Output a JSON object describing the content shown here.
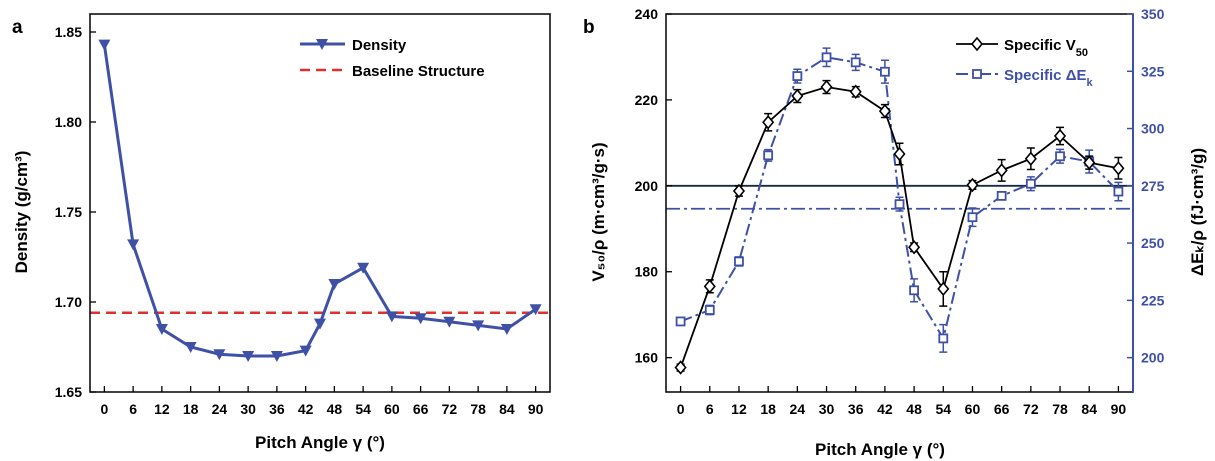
{
  "colors": {
    "density": "#3f51a6",
    "baseline": "#e03030",
    "v50": "#000000",
    "ek": "#3f51a6",
    "ekAxis": "#3f51a6"
  },
  "chart_data": [
    {
      "type": "line",
      "panel": "a",
      "xlabel": "Pitch Angle γ (°)",
      "ylabel": "Density (g/cm³)",
      "xlim": [
        -3,
        93
      ],
      "ylim": [
        1.65,
        1.86
      ],
      "xticks": [
        "0",
        "6",
        "12",
        "18",
        "24",
        "30",
        "36",
        "42",
        "48",
        "54",
        "60",
        "66",
        "72",
        "78",
        "84",
        "90"
      ],
      "yticks": [
        "1.65",
        "1.70",
        "1.75",
        "1.80",
        "1.85"
      ],
      "legend_position": "top-right",
      "series": [
        {
          "name": "Density",
          "marker": "triangle-down",
          "x": [
            0,
            6,
            12,
            18,
            24,
            30,
            36,
            42,
            45,
            48,
            54,
            60,
            66,
            72,
            78,
            84,
            90
          ],
          "y": [
            1.843,
            1.732,
            1.685,
            1.675,
            1.671,
            1.67,
            1.67,
            1.673,
            1.688,
            1.71,
            1.719,
            1.692,
            1.691,
            1.689,
            1.687,
            1.685,
            1.696
          ]
        },
        {
          "name": "Baseline Structure",
          "style": "dashed",
          "y": 1.694
        }
      ]
    },
    {
      "type": "line",
      "panel": "b",
      "xlabel": "Pitch Angle γ (°)",
      "ylabel": "V₅₀/ρ (m·cm³/g·s)",
      "y2label": "ΔEₖ/ρ (fJ·cm³/g)",
      "xlim": [
        -3,
        93
      ],
      "ylim": [
        152,
        240
      ],
      "y2lim": [
        185,
        350
      ],
      "xticks": [
        "0",
        "6",
        "12",
        "18",
        "24",
        "30",
        "36",
        "42",
        "48",
        "54",
        "60",
        "66",
        "72",
        "78",
        "84",
        "90"
      ],
      "yticks": [
        "160",
        "180",
        "200",
        "220",
        "240"
      ],
      "y2ticks": [
        "200",
        "225",
        "250",
        "275",
        "300",
        "325",
        "350"
      ],
      "legend_position": "top-right",
      "series": [
        {
          "name": "Specific V",
          "name_sub": "50",
          "marker": "diamond",
          "axis": "left",
          "x": [
            0,
            6,
            12,
            18,
            24,
            30,
            36,
            42,
            45,
            48,
            54,
            60,
            66,
            72,
            78,
            84,
            90
          ],
          "y": [
            157.7,
            176.6,
            198.8,
            214.8,
            220.9,
            223.0,
            221.9,
            217.4,
            207.4,
            185.7,
            176.0,
            200.2,
            203.6,
            206.3,
            211.6,
            205.4,
            204.1
          ],
          "err": [
            0.8,
            1.5,
            1.2,
            2.0,
            1.5,
            1.5,
            1.2,
            1.5,
            2.5,
            1.0,
            4.0,
            1.0,
            2.5,
            2.5,
            2.0,
            1.5,
            2.5
          ],
          "ref_line": 200
        },
        {
          "name": "Specific ΔE",
          "name_sub": "k",
          "marker": "square-open",
          "style": "dash-dot",
          "axis": "right",
          "x": [
            0,
            6,
            12,
            18,
            24,
            30,
            36,
            42,
            45,
            48,
            54,
            60,
            66,
            72,
            78,
            84,
            90
          ],
          "y": [
            215.8,
            220.8,
            242.0,
            288.3,
            322.9,
            331.1,
            328.9,
            324.8,
            267.0,
            229.4,
            208.4,
            261.3,
            270.6,
            275.9,
            287.9,
            285.6,
            272.5
          ],
          "err": [
            1.0,
            2.0,
            2.0,
            2.5,
            3.0,
            4.0,
            3.5,
            5.0,
            3.0,
            5.0,
            6.0,
            4.0,
            1.0,
            3.0,
            3.0,
            5.0,
            4.0
          ],
          "ref_line": 265
        }
      ]
    }
  ]
}
